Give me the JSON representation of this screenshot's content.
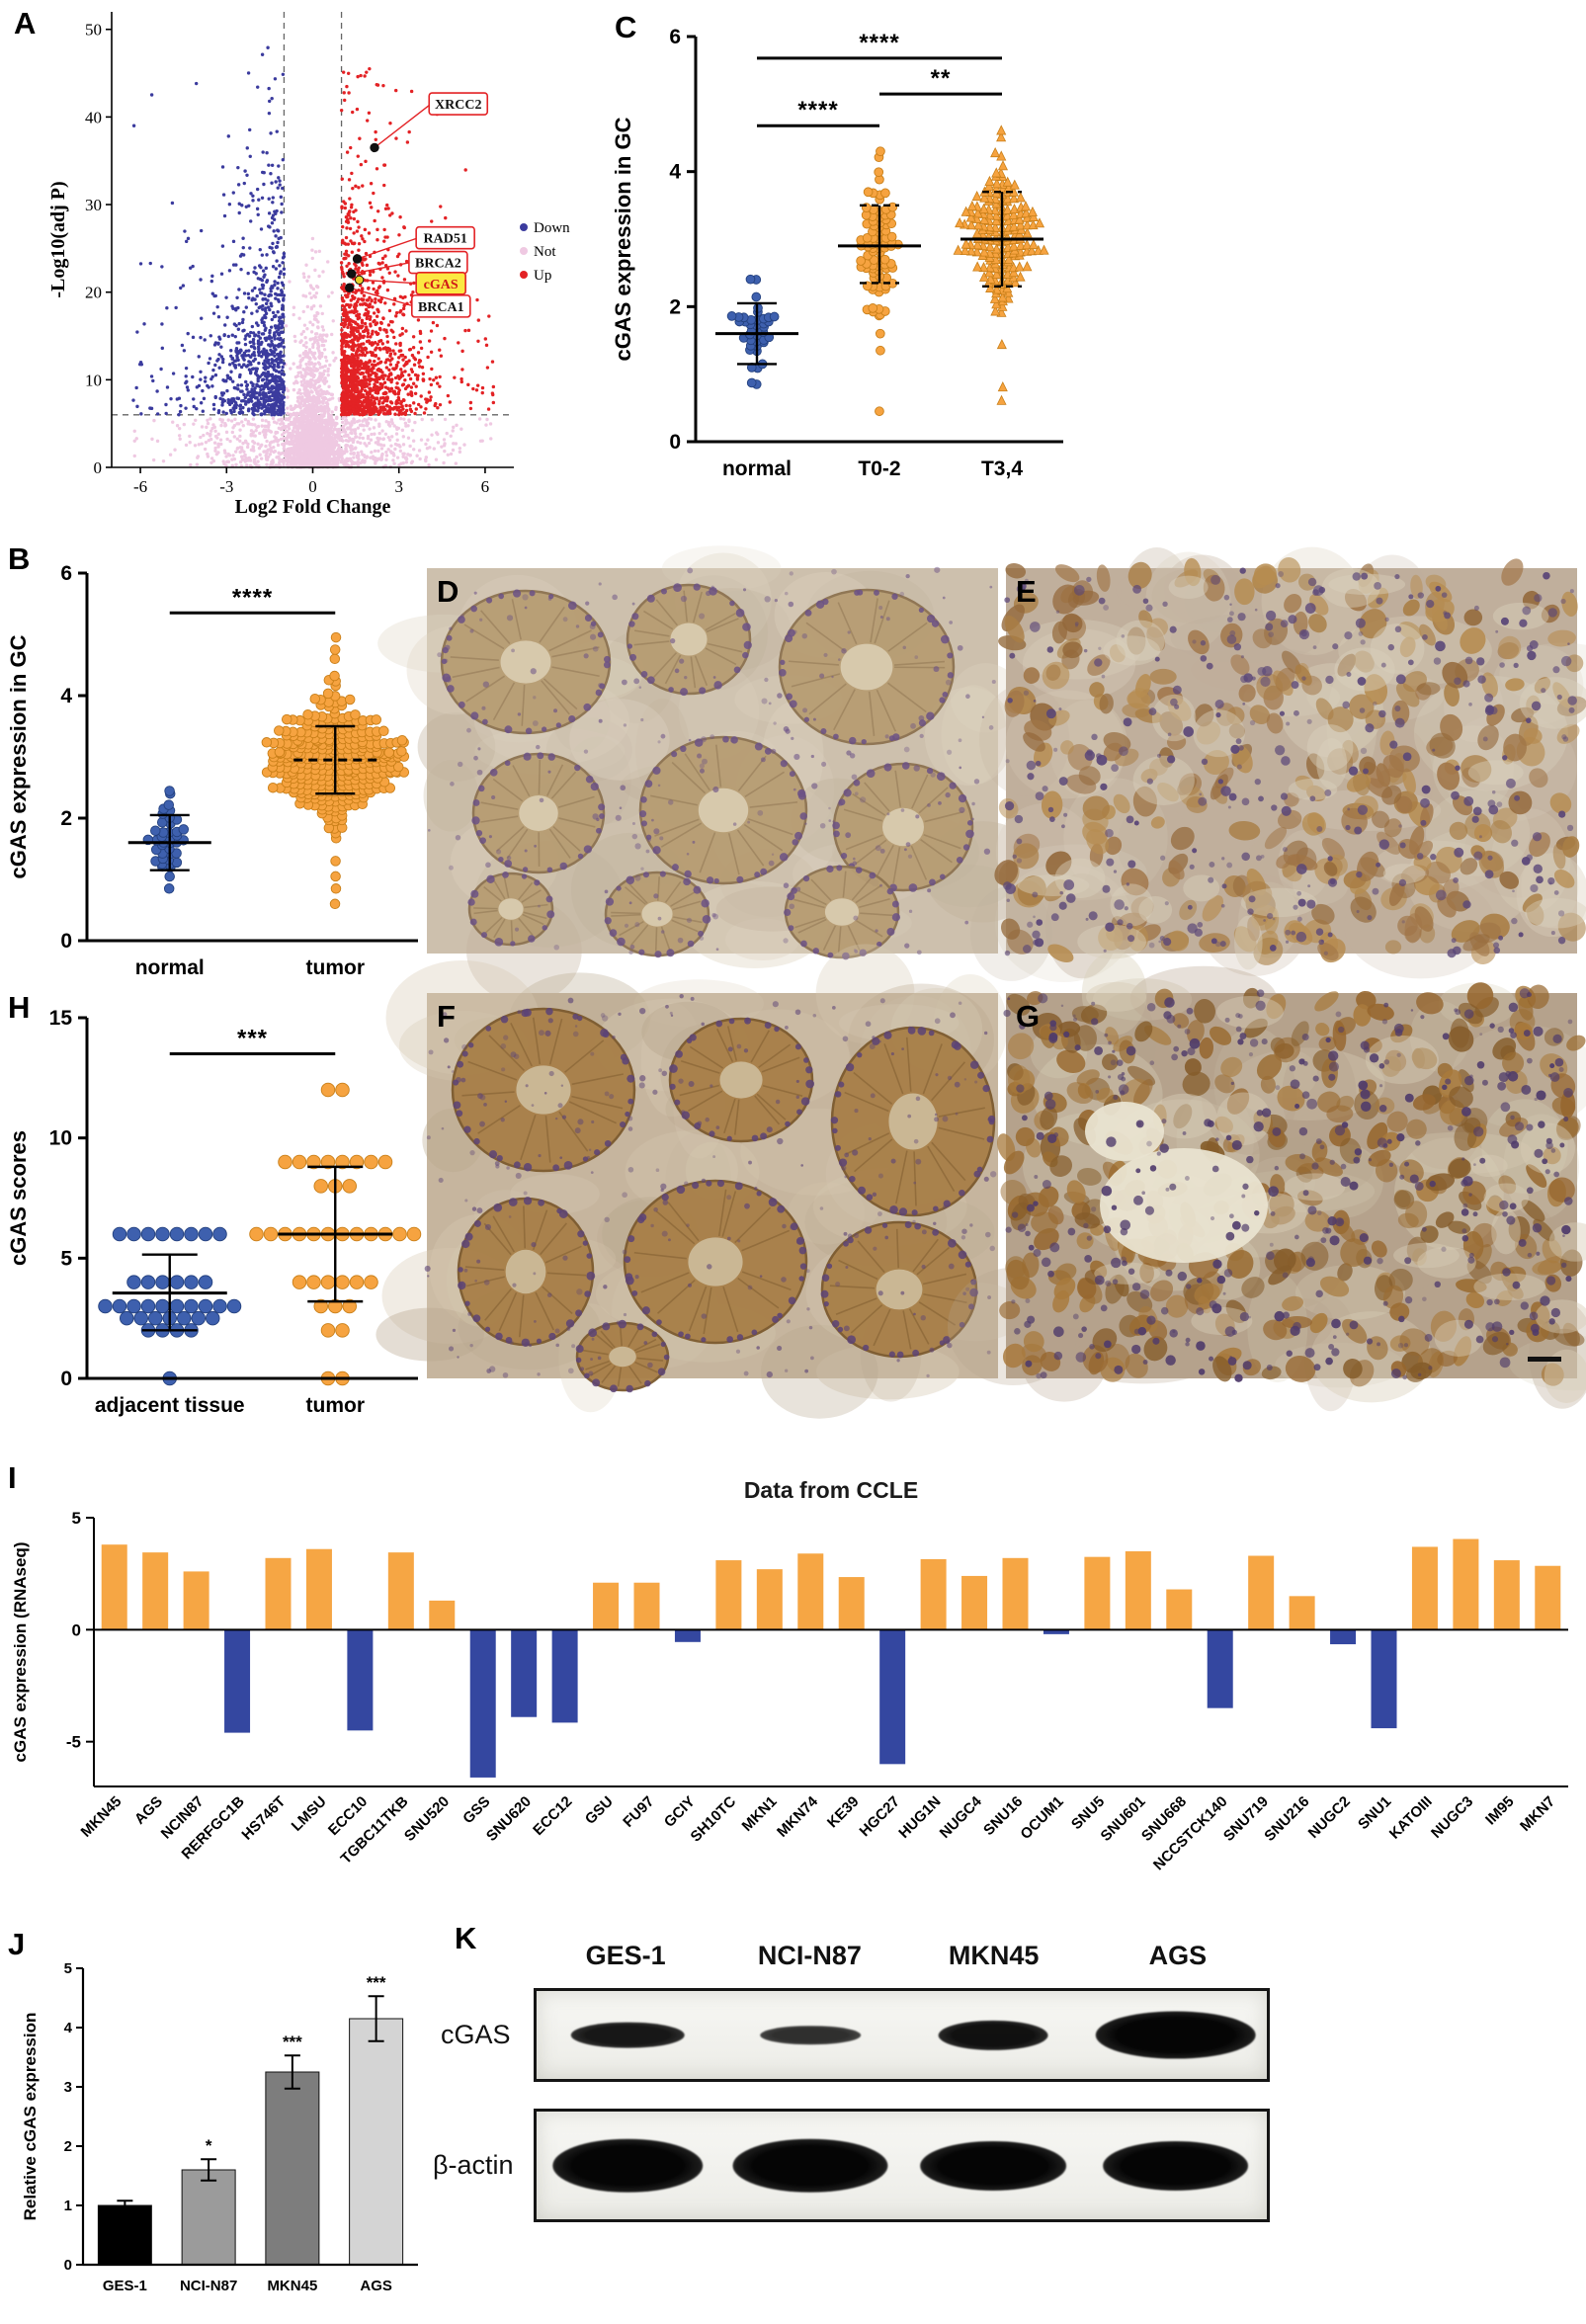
{
  "figure": {
    "panels": {
      "a": "A",
      "b": "B",
      "c": "C",
      "d": "D",
      "e": "E",
      "f": "F",
      "g": "G",
      "h": "H",
      "i": "I",
      "j": "J",
      "k": "K"
    }
  },
  "chart_data": [
    {
      "id": "A",
      "type": "scatter",
      "subtype": "volcano",
      "xlabel": "Log2 Fold Change",
      "ylabel": "-Log10(adj P)",
      "xlim": [
        -7,
        7
      ],
      "ylim": [
        0,
        52
      ],
      "xticks": [
        -6,
        -3,
        0,
        3,
        6
      ],
      "yticks": [
        0,
        10,
        20,
        30,
        40,
        50
      ],
      "threshold_x": [
        -1,
        1
      ],
      "threshold_y": 6,
      "colors": {
        "down": "#3b3b9e",
        "not": "#efc9e2",
        "up": "#e32225"
      },
      "legend": [
        {
          "label": "Down",
          "color": "#3b3b9e"
        },
        {
          "label": "Not",
          "color": "#efc9e2"
        },
        {
          "label": "Up",
          "color": "#e32225"
        }
      ],
      "cloud": {
        "down_n": 950,
        "not_n": 2600,
        "up_n": 1500,
        "seed": 7
      },
      "genes": [
        {
          "name": "XRCC2",
          "x": 2.15,
          "y": 36.5,
          "lx": 4.05,
          "ly": 41.5,
          "highlight": false
        },
        {
          "name": "RAD51",
          "x": 1.55,
          "y": 23.8,
          "lx": 3.6,
          "ly": 26.2,
          "highlight": false
        },
        {
          "name": "BRCA2",
          "x": 1.35,
          "y": 22.1,
          "lx": 3.35,
          "ly": 23.4,
          "highlight": false
        },
        {
          "name": "cGAS",
          "x": 1.62,
          "y": 21.4,
          "lx": 3.6,
          "ly": 21.0,
          "highlight": true
        },
        {
          "name": "BRCA1",
          "x": 1.28,
          "y": 20.5,
          "lx": 3.45,
          "ly": 18.4,
          "highlight": false
        }
      ]
    },
    {
      "id": "C",
      "type": "beeswarm",
      "ylabel": "cGAS expression in GC",
      "ylim": [
        0,
        6
      ],
      "yticks": [
        0,
        2,
        4,
        6
      ],
      "groups": [
        {
          "label": "normal",
          "n": 38,
          "mean": 1.6,
          "sd": 0.33,
          "min": 0.8,
          "max": 2.45,
          "err_lo": 1.15,
          "err_hi": 2.05,
          "color": "#3e60ae",
          "edge": "#23407e",
          "marker": "circle",
          "extra": [
            0.85,
            2.4
          ]
        },
        {
          "label": "T0-2",
          "n": 85,
          "mean": 2.9,
          "sd": 0.5,
          "min": 0.5,
          "max": 4.4,
          "err_lo": 2.35,
          "err_hi": 3.5,
          "cap_dash": true,
          "color": "#f6a340",
          "edge": "#c97f18",
          "marker": "circle",
          "extra": [
            0.45,
            1.35,
            1.6,
            4.3
          ]
        },
        {
          "label": "T3,4",
          "n": 185,
          "mean": 3.0,
          "sd": 0.55,
          "min": 0.55,
          "max": 4.65,
          "err_lo": 2.3,
          "err_hi": 3.7,
          "cap_dash": true,
          "color": "#f6a340",
          "edge": "#c97f18",
          "marker": "triangle",
          "extra": [
            0.6,
            0.8,
            4.5,
            4.6
          ]
        }
      ],
      "sig": [
        {
          "from": 0,
          "to": 1,
          "y": 4.68,
          "label": "****"
        },
        {
          "from": 1,
          "to": 2,
          "y": 5.15,
          "label": "**"
        },
        {
          "from": 0,
          "to": 2,
          "y": 5.68,
          "label": "****"
        }
      ]
    },
    {
      "id": "B",
      "type": "beeswarm",
      "ylabel": "cGAS expression in GC",
      "ylim": [
        0,
        6
      ],
      "yticks": [
        0,
        2,
        4,
        6
      ],
      "groups": [
        {
          "label": "normal",
          "n": 38,
          "mean": 1.6,
          "sd": 0.33,
          "min": 0.8,
          "max": 2.45,
          "err_lo": 1.15,
          "err_hi": 2.05,
          "color": "#3e60ae",
          "edge": "#23407e",
          "marker": "circle",
          "extra": [
            0.85,
            2.4
          ]
        },
        {
          "label": "tumor",
          "n": 330,
          "mean": 2.95,
          "sd": 0.52,
          "min": 0.55,
          "max": 4.95,
          "err_lo": 2.4,
          "err_hi": 3.5,
          "mean_dash": true,
          "color": "#f6a340",
          "edge": "#c97f18",
          "marker": "circle",
          "extra": [
            0.6,
            0.85,
            1.05,
            1.3,
            4.6,
            4.75,
            4.95
          ]
        }
      ],
      "sig": [
        {
          "from": 0,
          "to": 1,
          "y": 5.35,
          "label": "****"
        }
      ]
    },
    {
      "id": "H",
      "type": "dotplot",
      "ylabel": "cGAS scores",
      "ylim": [
        0,
        15
      ],
      "yticks": [
        0,
        5,
        10,
        15
      ],
      "groups": [
        {
          "label": "adjacent tissue",
          "color": "#3e60ae",
          "edge": "#23407e",
          "marker": "circle",
          "points": [
            [
              6,
              8
            ],
            [
              4,
              6
            ],
            [
              3,
              10
            ],
            [
              2.5,
              7
            ],
            [
              2,
              4
            ],
            [
              0,
              1
            ]
          ],
          "mean": 3.55,
          "err_lo": 2.0,
          "err_hi": 5.15
        },
        {
          "label": "tumor",
          "color": "#f6a340",
          "edge": "#c97f18",
          "marker": "circle",
          "points": [
            [
              12,
              2
            ],
            [
              9,
              8
            ],
            [
              8,
              3
            ],
            [
              6,
              12
            ],
            [
              4,
              6
            ],
            [
              3,
              3
            ],
            [
              2,
              2
            ],
            [
              0,
              2
            ]
          ],
          "mean": 6.0,
          "err_lo": 3.2,
          "err_hi": 8.8
        }
      ],
      "sig": [
        {
          "from": 0,
          "to": 1,
          "y": 13.5,
          "label": "***"
        }
      ]
    },
    {
      "id": "I",
      "type": "bar",
      "title": "Data from CCLE",
      "ylabel": "cGAS expression (RNAseq)",
      "ylim": [
        -7,
        5
      ],
      "yticks": [
        -5,
        0,
        5
      ],
      "pos_color": "#f6a644",
      "neg_color": "#3447a0",
      "categories": [
        "MKN45",
        "AGS",
        "NCIN87",
        "RERFGC1B",
        "HS746T",
        "LMSU",
        "ECC10",
        "TGBC11TKB",
        "SNU520",
        "GSS",
        "SNU620",
        "ECC12",
        "GSU",
        "FU97",
        "GCIY",
        "SH10TC",
        "MKN1",
        "MKN74",
        "KE39",
        "HGC27",
        "HUG1N",
        "NUGC4",
        "SNU16",
        "OCUM1",
        "SNU5",
        "SNU601",
        "SNU668",
        "NCCSTCK140",
        "SNU719",
        "SNU216",
        "NUGC2",
        "SNU1",
        "KATOIII",
        "NUGC3",
        "IM95",
        "MKN7"
      ],
      "values": [
        3.8,
        3.45,
        2.6,
        -4.6,
        3.2,
        3.6,
        -4.5,
        3.45,
        1.3,
        -6.6,
        -3.9,
        -4.15,
        2.1,
        2.1,
        -0.55,
        3.1,
        2.7,
        3.4,
        2.35,
        -6.0,
        3.15,
        2.4,
        3.2,
        -0.2,
        3.25,
        3.5,
        1.8,
        -3.5,
        3.3,
        1.5,
        -0.65,
        -4.4,
        3.7,
        4.05,
        3.1,
        2.85
      ]
    },
    {
      "id": "J",
      "type": "bar",
      "ylabel": "Relative cGAS expression",
      "ylim": [
        0,
        5
      ],
      "yticks": [
        0,
        1,
        2,
        3,
        4,
        5
      ],
      "categories": [
        "GES-1",
        "NCI-N87",
        "MKN45",
        "AGS"
      ],
      "values": [
        1.0,
        1.6,
        3.25,
        4.15
      ],
      "errors": [
        0.08,
        0.18,
        0.28,
        0.38
      ],
      "stars": [
        "",
        "*",
        "***",
        "***"
      ],
      "colors": [
        "#000000",
        "#9b9b9b",
        "#7d7d7d",
        "#d4d4d4"
      ]
    }
  ],
  "panel_k": {
    "lanes": [
      "GES-1",
      "NCI-N87",
      "MKN45",
      "AGS"
    ],
    "rows": [
      {
        "label": "cGAS",
        "bands": [
          {
            "w": 0.62,
            "h": 0.3,
            "dark": 0.92
          },
          {
            "w": 0.55,
            "h": 0.22,
            "dark": 0.82
          },
          {
            "w": 0.6,
            "h": 0.34,
            "dark": 0.95
          },
          {
            "w": 0.88,
            "h": 0.55,
            "dark": 1
          }
        ]
      },
      {
        "label": "β-actin",
        "bands": [
          {
            "w": 0.82,
            "h": 0.5,
            "dark": 1
          },
          {
            "w": 0.85,
            "h": 0.5,
            "dark": 1
          },
          {
            "w": 0.8,
            "h": 0.46,
            "dark": 1
          },
          {
            "w": 0.8,
            "h": 0.46,
            "dark": 1
          }
        ]
      }
    ]
  }
}
